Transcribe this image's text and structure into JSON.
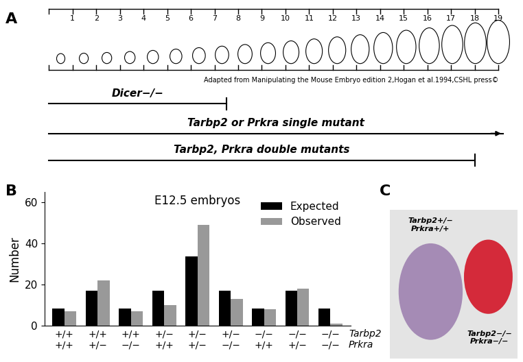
{
  "panel_labels": [
    "A",
    "B",
    "C"
  ],
  "timeline": {
    "ruler_range": [
      0,
      19
    ],
    "ruler_ticks": [
      1,
      2,
      3,
      4,
      5,
      6,
      7,
      8,
      9,
      10,
      11,
      12,
      13,
      14,
      15,
      16,
      17,
      18,
      19
    ],
    "credit": "Adapted from Manipulating the Mouse Embryo edition 2,Hogan et al.1994,CSHL press©",
    "spans": [
      {
        "label": "Dicer−/−",
        "start": 0,
        "end": 7.5,
        "end_style": "bar"
      },
      {
        "label": "Tarbp2 or Prkra single mutant",
        "start": 0,
        "end": 19.2,
        "end_style": "arrow"
      },
      {
        "label": "Tarbp2, Prkra double mutants",
        "start": 0,
        "end": 18,
        "end_style": "bar"
      }
    ]
  },
  "chart_data": {
    "type": "bar",
    "title": "E12.5 embryos",
    "y_label": "Number",
    "categories": [
      "+/+\n+/+",
      "+/+\n+/−",
      "+/+\n−/−",
      "+/−\n+/+",
      "+/−\n+/−",
      "+/−\n−/−",
      "−/−\n+/+",
      "−/−\n+/−",
      "−/−\n−/−"
    ],
    "row_labels": [
      "Tarbp2",
      "Prkra"
    ],
    "series": [
      {
        "name": "Expected",
        "color": "#000000",
        "values": [
          8.4,
          16.9,
          8.4,
          16.9,
          33.8,
          16.9,
          8.4,
          16.9,
          8.4
        ]
      },
      {
        "name": "Observed",
        "color": "#999999",
        "values": [
          7,
          22,
          7,
          10,
          49,
          13,
          8,
          18,
          1
        ]
      }
    ],
    "ylim": [
      0,
      65
    ],
    "yticks": [
      0,
      20,
      40,
      60
    ],
    "legend": "upper right"
  },
  "photo": {
    "labels": [
      "Tarbp2+/−\nPrkra+/+",
      "Tarbp2−/−\nPrkra−/−"
    ]
  }
}
